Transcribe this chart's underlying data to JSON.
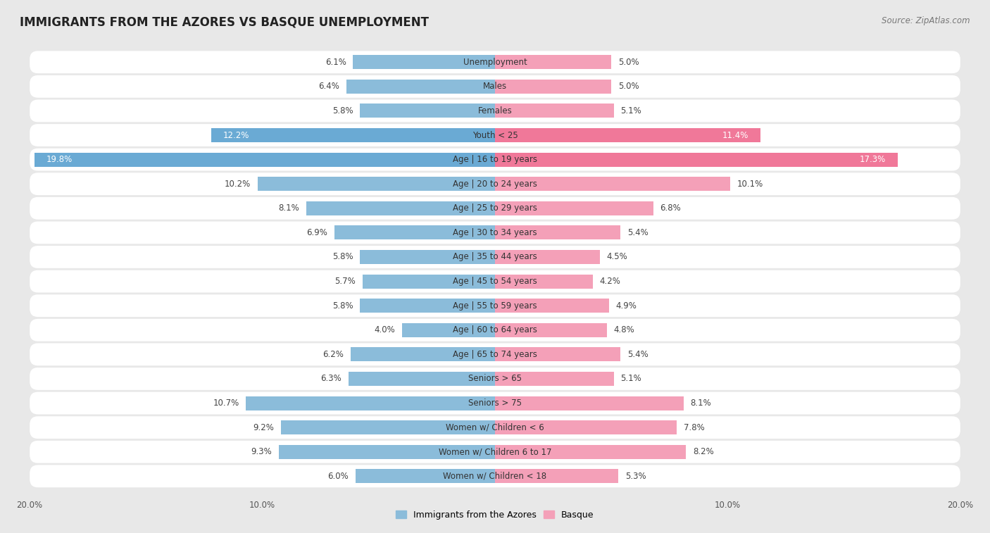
{
  "title": "IMMIGRANTS FROM THE AZORES VS BASQUE UNEMPLOYMENT",
  "source": "Source: ZipAtlas.com",
  "categories": [
    "Unemployment",
    "Males",
    "Females",
    "Youth < 25",
    "Age | 16 to 19 years",
    "Age | 20 to 24 years",
    "Age | 25 to 29 years",
    "Age | 30 to 34 years",
    "Age | 35 to 44 years",
    "Age | 45 to 54 years",
    "Age | 55 to 59 years",
    "Age | 60 to 64 years",
    "Age | 65 to 74 years",
    "Seniors > 65",
    "Seniors > 75",
    "Women w/ Children < 6",
    "Women w/ Children 6 to 17",
    "Women w/ Children < 18"
  ],
  "azores_values": [
    6.1,
    6.4,
    5.8,
    12.2,
    19.8,
    10.2,
    8.1,
    6.9,
    5.8,
    5.7,
    5.8,
    4.0,
    6.2,
    6.3,
    10.7,
    9.2,
    9.3,
    6.0
  ],
  "basque_values": [
    5.0,
    5.0,
    5.1,
    11.4,
    17.3,
    10.1,
    6.8,
    5.4,
    4.5,
    4.2,
    4.9,
    4.8,
    5.4,
    5.1,
    8.1,
    7.8,
    8.2,
    5.3
  ],
  "azores_color": "#8bbcda",
  "basque_color": "#f4a0b8",
  "azores_highlight_color": "#6aaad4",
  "basque_highlight_color": "#f07899",
  "row_color_even": "#f5f5f5",
  "row_color_odd": "#e8e8e8",
  "background_color": "#e8e8e8",
  "xlim": 20.0,
  "legend_azores": "Immigrants from the Azores",
  "legend_basque": "Basque",
  "title_fontsize": 12,
  "source_fontsize": 8.5,
  "label_fontsize": 8.5,
  "value_fontsize": 8.5,
  "highlight_rows": [
    "Youth < 25",
    "Age | 16 to 19 years"
  ]
}
